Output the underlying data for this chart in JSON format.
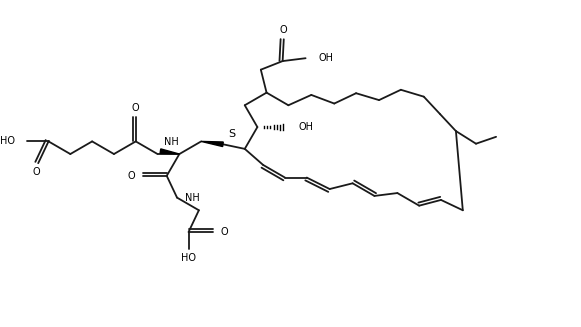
{
  "bg_color": "#ffffff",
  "bond_color": "#1a1a1a",
  "figsize": [
    5.81,
    3.27
  ],
  "dpi": 100,
  "xlim": [
    0,
    10
  ],
  "ylim": [
    0,
    5.63
  ]
}
